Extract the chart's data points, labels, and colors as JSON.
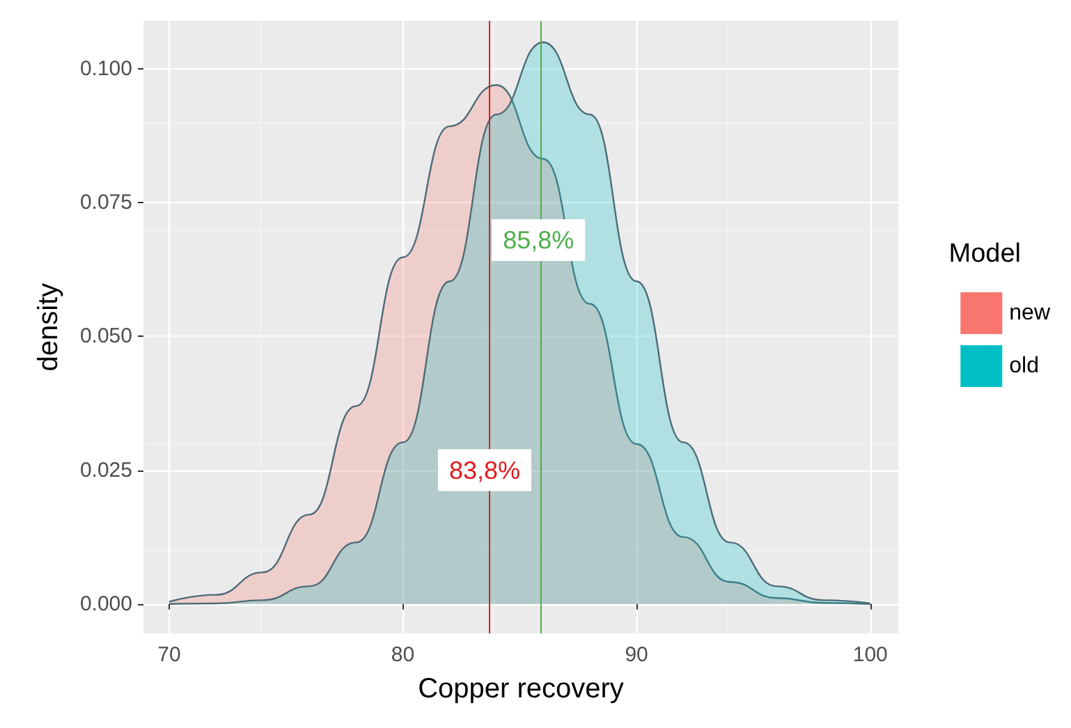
{
  "chart_data": {
    "type": "area",
    "xlabel": "Copper recovery",
    "ylabel": "density",
    "legend_title": "Model",
    "x": [
      70,
      72,
      74,
      76,
      78,
      80,
      82,
      84,
      86,
      88,
      90,
      92,
      94,
      96,
      98,
      100
    ],
    "series": [
      {
        "name": "new",
        "color": "#f8766d",
        "values": [
          0.0004,
          0.0017,
          0.0059,
          0.0167,
          0.037,
          0.0648,
          0.0893,
          0.097,
          0.0832,
          0.0561,
          0.0299,
          0.0125,
          0.0041,
          0.0011,
          0.0002,
          0
        ]
      },
      {
        "name": "old",
        "color": "#00bfc4",
        "values": [
          0,
          0.0001,
          0.0007,
          0.0033,
          0.0115,
          0.0302,
          0.0603,
          0.0915,
          0.105,
          0.0915,
          0.0603,
          0.0302,
          0.0115,
          0.0033,
          0.0007,
          0.0001
        ]
      }
    ],
    "xlim": [
      68.9,
      101.2
    ],
    "ylim": [
      -0.0055,
      0.109
    ],
    "xticks": [
      70,
      80,
      90,
      100
    ],
    "yticks": [
      {
        "value": 0,
        "label": "0.000"
      },
      {
        "value": 0.025,
        "label": "0.025"
      },
      {
        "value": 0.05,
        "label": "0.050"
      },
      {
        "value": 0.075,
        "label": "0.075"
      },
      {
        "value": 0.1,
        "label": "0.100"
      }
    ],
    "ref_lines": [
      {
        "axis": "x",
        "value": 83.7,
        "color": "#e41a1c"
      },
      {
        "axis": "x",
        "value": 85.9,
        "color": "#4daf4a"
      }
    ],
    "annotations": [
      {
        "text": "83,8%",
        "x": 83.5,
        "y": 0.025
      },
      {
        "text": "85,8%",
        "x": 85.8,
        "y": 0.068
      }
    ],
    "grid": true,
    "legend": "right"
  }
}
